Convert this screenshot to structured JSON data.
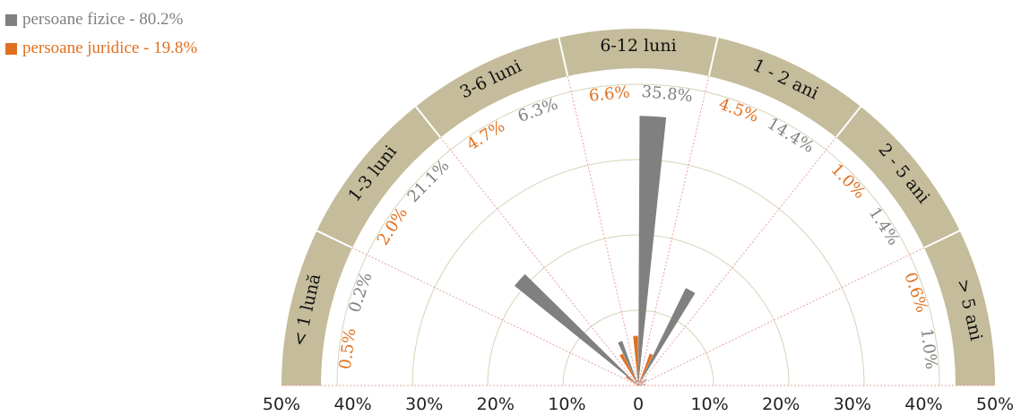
{
  "chart_data": {
    "type": "polar-bar",
    "categories": [
      "< 1 lună",
      "1-3 luni",
      "3-6 luni",
      "6-12 luni",
      "1 - 2 ani",
      "2 - 5 ani",
      "> 5 ani"
    ],
    "series": [
      {
        "name": "persoane fizice - 80.2%",
        "color": "#808080",
        "values": [
          0.2,
          21.1,
          6.3,
          35.8,
          14.4,
          1.4,
          1.0
        ],
        "labels": [
          "0.2%",
          "21.1%",
          "6.3%",
          "35.8%",
          "14.4%",
          "1.4%",
          "1.0%"
        ]
      },
      {
        "name": "persoane juridice - 19.8%",
        "color": "#e07020",
        "values": [
          0.5,
          2.0,
          4.7,
          6.6,
          4.5,
          1.0,
          0.6
        ],
        "labels": [
          "0.5%",
          "2.0%",
          "4.7%",
          "6.6%",
          "4.5%",
          "1.0%",
          "0.6%"
        ]
      }
    ],
    "axis_ticks": [
      "50%",
      "40%",
      "30%",
      "20%",
      "10%",
      "0",
      "10%",
      "20%",
      "30%",
      "40%",
      "50%"
    ],
    "rmax": 50,
    "legend_position": "top-left",
    "colors": {
      "ring": "#c4bc9a",
      "grid": "#d8d2b8",
      "spoke": "#e8a0a0"
    }
  }
}
